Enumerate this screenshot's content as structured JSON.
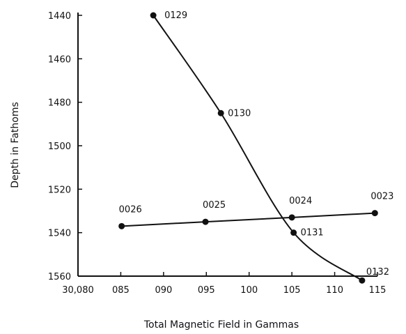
{
  "chart_data": {
    "type": "line",
    "xlabel": "Total Magnetic Field in Gammas",
    "ylabel": "Depth in Fathoms",
    "xlim": [
      30080,
      30115
    ],
    "ylim": [
      1560,
      1440
    ],
    "y_inverted": true,
    "x_ticks": [
      30080,
      30085,
      30090,
      30095,
      30100,
      30105,
      30110,
      30115
    ],
    "x_tick_labels": [
      "30,080",
      "085",
      "090",
      "095",
      "100",
      "105",
      "110",
      "115"
    ],
    "y_ticks": [
      1440,
      1460,
      1480,
      1500,
      1520,
      1540,
      1560
    ],
    "y_tick_labels": [
      "1440",
      "1460",
      "1480",
      "1500",
      "1520",
      "1540",
      "1560"
    ],
    "grid": false,
    "series": [
      {
        "style": "smooth-curve",
        "points": [
          {
            "label": "0129",
            "x": 30088.8,
            "y": 1440
          },
          {
            "label": "0130",
            "x": 30096.7,
            "y": 1485
          },
          {
            "label": "0131",
            "x": 30105.2,
            "y": 1540
          },
          {
            "label": "0132",
            "x": 30113.2,
            "y": 1562
          }
        ]
      },
      {
        "style": "straight-line",
        "points": [
          {
            "label": "0026",
            "x": 30085.1,
            "y": 1537
          },
          {
            "label": "0025",
            "x": 30094.9,
            "y": 1535
          },
          {
            "label": "0024",
            "x": 30105.0,
            "y": 1533
          },
          {
            "label": "0023",
            "x": 30114.7,
            "y": 1531
          }
        ]
      }
    ],
    "colors": {
      "ink": "#111111",
      "background": "#ffffff"
    }
  }
}
